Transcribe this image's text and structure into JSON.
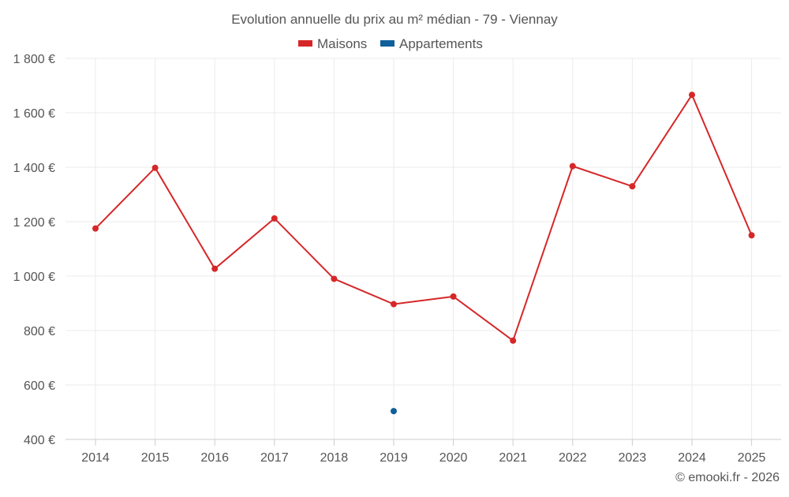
{
  "colors": {
    "maisons": "#d62728",
    "appartements": "#0f5f9a",
    "grid": "#ebebeb",
    "axis_line": "#cccccc",
    "text": "#555555"
  },
  "credit": "© emooki.fr - 2026",
  "chart_data": {
    "type": "line",
    "title": "Evolution annuelle du prix au m² médian - 79 - Viennay",
    "xlabel": "",
    "ylabel": "",
    "categories": [
      "2014",
      "2015",
      "2016",
      "2017",
      "2018",
      "2019",
      "2020",
      "2021",
      "2022",
      "2023",
      "2024",
      "2025"
    ],
    "ylim": [
      400,
      1800
    ],
    "yticks": [
      400,
      600,
      800,
      1000,
      1200,
      1400,
      1600,
      1800
    ],
    "ytick_labels": [
      "400 €",
      "600 €",
      "800 €",
      "1 000 €",
      "1 200 €",
      "1 400 €",
      "1 600 €",
      "1 800 €"
    ],
    "legend_position": "top-center",
    "grid": true,
    "series": [
      {
        "name": "Maisons",
        "color_key": "maisons",
        "values": [
          1175,
          1398,
          1027,
          1212,
          990,
          897,
          925,
          763,
          1404,
          1330,
          1666,
          1150
        ]
      },
      {
        "name": "Appartements",
        "color_key": "appartements",
        "values": [
          null,
          null,
          null,
          null,
          null,
          504,
          null,
          null,
          null,
          null,
          null,
          null
        ]
      }
    ]
  }
}
